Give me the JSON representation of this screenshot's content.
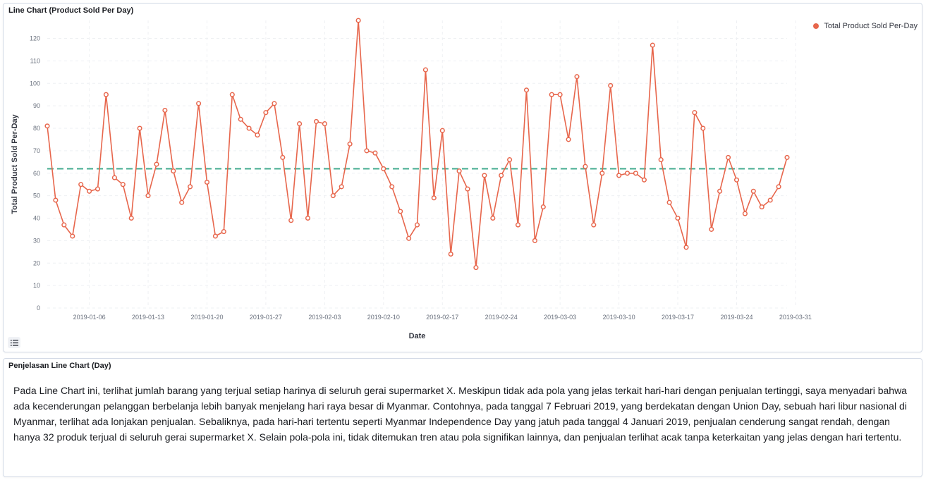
{
  "chart_panel": {
    "title": "Line Chart (Product Sold Per Day)"
  },
  "text_panel": {
    "title": "Penjelasan Line Chart (Day)",
    "body": "Pada Line Chart ini, terlihat jumlah barang yang terjual setiap harinya di seluruh gerai supermarket X. Meskipun tidak ada pola yang jelas terkait hari-hari dengan penjualan tertinggi, saya menyadari bahwa ada kecenderungan pelanggan berbelanja lebih banyak menjelang hari raya besar di Myanmar. Contohnya, pada tanggal 7 Februari 2019, yang berdekatan dengan Union Day, sebuah hari libur nasional di Myanmar, terlihat ada lonjakan penjualan. Sebaliknya, pada hari-hari tertentu seperti Myanmar Independence Day yang jatuh pada tanggal 4 Januari 2019, penjualan cenderung sangat rendah, dengan hanya 32 produk terjual di seluruh gerai supermarket X. Selain pola-pola ini, tidak ditemukan tren atau pola signifikan lainnya, dan penjualan terlihat acak tanpa keterkaitan yang jelas dengan hari tertentu."
  },
  "icons": {
    "legend_toggle": "list-icon"
  },
  "chart_data": {
    "type": "line",
    "title": "Line Chart (Product Sold Per Day)",
    "xlabel": "Date",
    "ylabel": "Total Product Sold Per-Day",
    "ylim": [
      0,
      128
    ],
    "yticks": [
      0,
      10,
      20,
      30,
      40,
      50,
      60,
      70,
      80,
      90,
      100,
      110,
      120
    ],
    "x_range": [
      "2019-01-01",
      "2019-03-30"
    ],
    "xticks": [
      "2019-01-06",
      "2019-01-13",
      "2019-01-20",
      "2019-01-27",
      "2019-02-03",
      "2019-02-10",
      "2019-02-17",
      "2019-02-24",
      "2019-03-03",
      "2019-03-10",
      "2019-03-17",
      "2019-03-24",
      "2019-03-31"
    ],
    "grid": true,
    "legend_position": "top-right",
    "reference_line": {
      "value": 62,
      "color": "#54b399",
      "style": "dashed"
    },
    "series": [
      {
        "name": "Total Product Sold Per-Day",
        "color": "#e7664c",
        "x": [
          "2019-01-01",
          "2019-01-02",
          "2019-01-03",
          "2019-01-04",
          "2019-01-05",
          "2019-01-06",
          "2019-01-07",
          "2019-01-08",
          "2019-01-09",
          "2019-01-10",
          "2019-01-11",
          "2019-01-12",
          "2019-01-13",
          "2019-01-14",
          "2019-01-15",
          "2019-01-16",
          "2019-01-17",
          "2019-01-18",
          "2019-01-19",
          "2019-01-20",
          "2019-01-21",
          "2019-01-22",
          "2019-01-23",
          "2019-01-24",
          "2019-01-25",
          "2019-01-26",
          "2019-01-27",
          "2019-01-28",
          "2019-01-29",
          "2019-01-30",
          "2019-01-31",
          "2019-02-01",
          "2019-02-02",
          "2019-02-03",
          "2019-02-04",
          "2019-02-05",
          "2019-02-06",
          "2019-02-07",
          "2019-02-08",
          "2019-02-09",
          "2019-02-10",
          "2019-02-11",
          "2019-02-12",
          "2019-02-13",
          "2019-02-14",
          "2019-02-15",
          "2019-02-16",
          "2019-02-17",
          "2019-02-18",
          "2019-02-19",
          "2019-02-20",
          "2019-02-21",
          "2019-02-22",
          "2019-02-23",
          "2019-02-24",
          "2019-02-25",
          "2019-02-26",
          "2019-02-27",
          "2019-02-28",
          "2019-03-01",
          "2019-03-02",
          "2019-03-03",
          "2019-03-04",
          "2019-03-05",
          "2019-03-06",
          "2019-03-07",
          "2019-03-08",
          "2019-03-09",
          "2019-03-10",
          "2019-03-11",
          "2019-03-12",
          "2019-03-13",
          "2019-03-14",
          "2019-03-15",
          "2019-03-16",
          "2019-03-17",
          "2019-03-18",
          "2019-03-19",
          "2019-03-20",
          "2019-03-21",
          "2019-03-22",
          "2019-03-23",
          "2019-03-24",
          "2019-03-25",
          "2019-03-26",
          "2019-03-27",
          "2019-03-28",
          "2019-03-29",
          "2019-03-30"
        ],
        "values": [
          81,
          48,
          37,
          32,
          55,
          52,
          53,
          95,
          58,
          55,
          40,
          80,
          50,
          64,
          88,
          61,
          47,
          54,
          91,
          56,
          32,
          34,
          95,
          84,
          80,
          77,
          87,
          91,
          67,
          39,
          82,
          40,
          83,
          82,
          50,
          54,
          73,
          128,
          70,
          69,
          62,
          54,
          43,
          31,
          37,
          106,
          49,
          79,
          24,
          61,
          53,
          18,
          59,
          40,
          59,
          66,
          37,
          97,
          30,
          45,
          95,
          95,
          75,
          103,
          63,
          37,
          60,
          99,
          59,
          60,
          60,
          57,
          117,
          66,
          47,
          40,
          27,
          87,
          80,
          35,
          52,
          67,
          57,
          42,
          52,
          45,
          48,
          54,
          67
        ]
      }
    ]
  }
}
